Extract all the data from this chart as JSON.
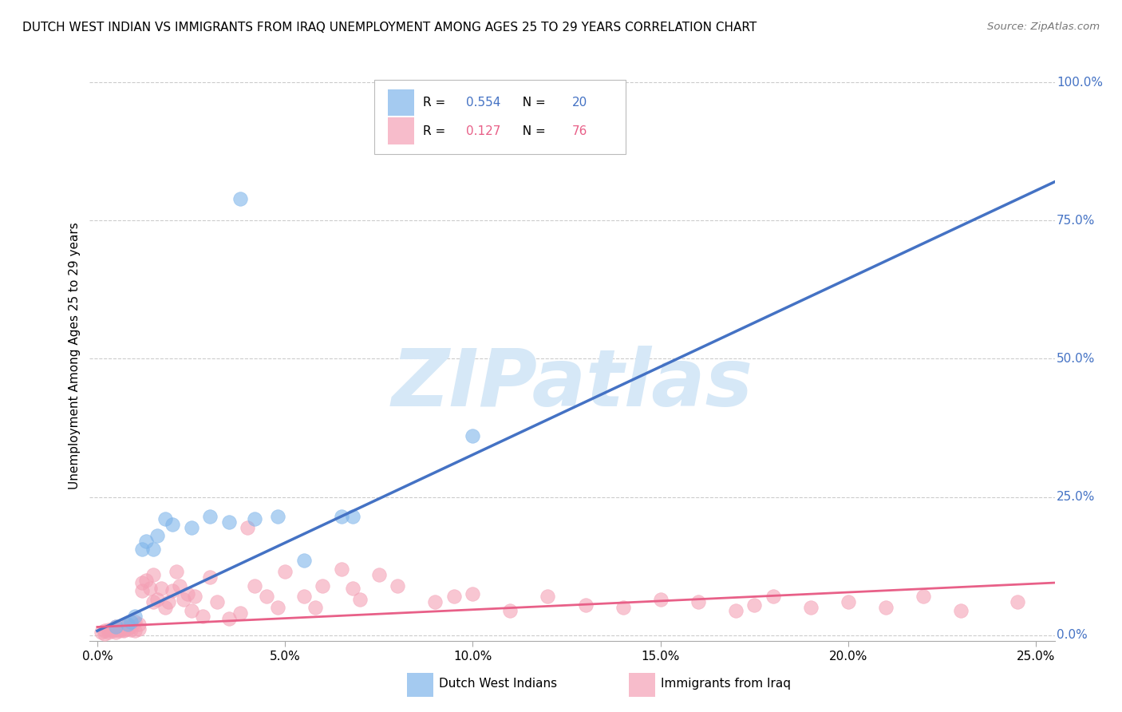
{
  "title": "DUTCH WEST INDIAN VS IMMIGRANTS FROM IRAQ UNEMPLOYMENT AMONG AGES 25 TO 29 YEARS CORRELATION CHART",
  "source": "Source: ZipAtlas.com",
  "ylabel": "Unemployment Among Ages 25 to 29 years",
  "x_tick_labels": [
    "0.0%",
    "5.0%",
    "10.0%",
    "15.0%",
    "20.0%",
    "25.0%"
  ],
  "x_tick_vals": [
    0.0,
    0.05,
    0.1,
    0.15,
    0.2,
    0.25
  ],
  "y_tick_labels": [
    "0.0%",
    "25.0%",
    "50.0%",
    "75.0%",
    "100.0%"
  ],
  "y_tick_vals": [
    0.0,
    0.25,
    0.5,
    0.75,
    1.0
  ],
  "xlim": [
    -0.002,
    0.255
  ],
  "ylim": [
    -0.01,
    1.02
  ],
  "blue_R": "0.554",
  "blue_N": "20",
  "pink_R": "0.127",
  "pink_N": "76",
  "legend_label_blue": "Dutch West Indians",
  "legend_label_pink": "Immigrants from Iraq",
  "blue_color": "#7EB4EA",
  "pink_color": "#F4A0B5",
  "blue_line_color": "#4472C4",
  "pink_line_color": "#E86088",
  "blue_text_color": "#4472C4",
  "pink_text_color": "#E86088",
  "watermark_text": "ZIPatlas",
  "watermark_color": "#D6E8F7",
  "background_color": "#FFFFFF",
  "grid_color": "#CCCCCC",
  "blue_scatter_x": [
    0.005,
    0.008,
    0.009,
    0.01,
    0.012,
    0.013,
    0.015,
    0.016,
    0.018,
    0.02,
    0.025,
    0.03,
    0.035,
    0.038,
    0.042,
    0.048,
    0.055,
    0.065,
    0.068,
    0.1
  ],
  "blue_scatter_y": [
    0.015,
    0.02,
    0.025,
    0.035,
    0.155,
    0.17,
    0.155,
    0.18,
    0.21,
    0.2,
    0.195,
    0.215,
    0.205,
    0.79,
    0.21,
    0.215,
    0.135,
    0.215,
    0.215,
    0.36
  ],
  "pink_scatter_x": [
    0.001,
    0.002,
    0.002,
    0.003,
    0.003,
    0.004,
    0.004,
    0.005,
    0.005,
    0.005,
    0.006,
    0.006,
    0.007,
    0.007,
    0.007,
    0.008,
    0.008,
    0.009,
    0.009,
    0.01,
    0.01,
    0.011,
    0.011,
    0.012,
    0.012,
    0.013,
    0.014,
    0.015,
    0.015,
    0.016,
    0.017,
    0.018,
    0.019,
    0.02,
    0.021,
    0.022,
    0.023,
    0.024,
    0.025,
    0.026,
    0.028,
    0.03,
    0.032,
    0.035,
    0.038,
    0.04,
    0.042,
    0.045,
    0.048,
    0.05,
    0.055,
    0.058,
    0.06,
    0.065,
    0.068,
    0.07,
    0.075,
    0.08,
    0.09,
    0.095,
    0.1,
    0.11,
    0.12,
    0.13,
    0.14,
    0.15,
    0.16,
    0.17,
    0.175,
    0.18,
    0.19,
    0.2,
    0.21,
    0.22,
    0.23,
    0.245
  ],
  "pink_scatter_y": [
    0.005,
    0.003,
    0.008,
    0.005,
    0.01,
    0.008,
    0.012,
    0.005,
    0.01,
    0.015,
    0.008,
    0.012,
    0.01,
    0.015,
    0.008,
    0.012,
    0.018,
    0.01,
    0.015,
    0.008,
    0.025,
    0.012,
    0.02,
    0.08,
    0.095,
    0.1,
    0.085,
    0.11,
    0.06,
    0.065,
    0.085,
    0.05,
    0.06,
    0.08,
    0.115,
    0.09,
    0.065,
    0.075,
    0.045,
    0.07,
    0.035,
    0.105,
    0.06,
    0.03,
    0.04,
    0.195,
    0.09,
    0.07,
    0.05,
    0.115,
    0.07,
    0.05,
    0.09,
    0.12,
    0.085,
    0.065,
    0.11,
    0.09,
    0.06,
    0.07,
    0.075,
    0.045,
    0.07,
    0.055,
    0.05,
    0.065,
    0.06,
    0.045,
    0.055,
    0.07,
    0.05,
    0.06,
    0.05,
    0.07,
    0.045,
    0.06
  ],
  "blue_trend_x": [
    0.0,
    0.255
  ],
  "blue_trend_y": [
    0.008,
    0.82
  ],
  "pink_trend_x": [
    0.0,
    0.255
  ],
  "pink_trend_y": [
    0.015,
    0.095
  ]
}
